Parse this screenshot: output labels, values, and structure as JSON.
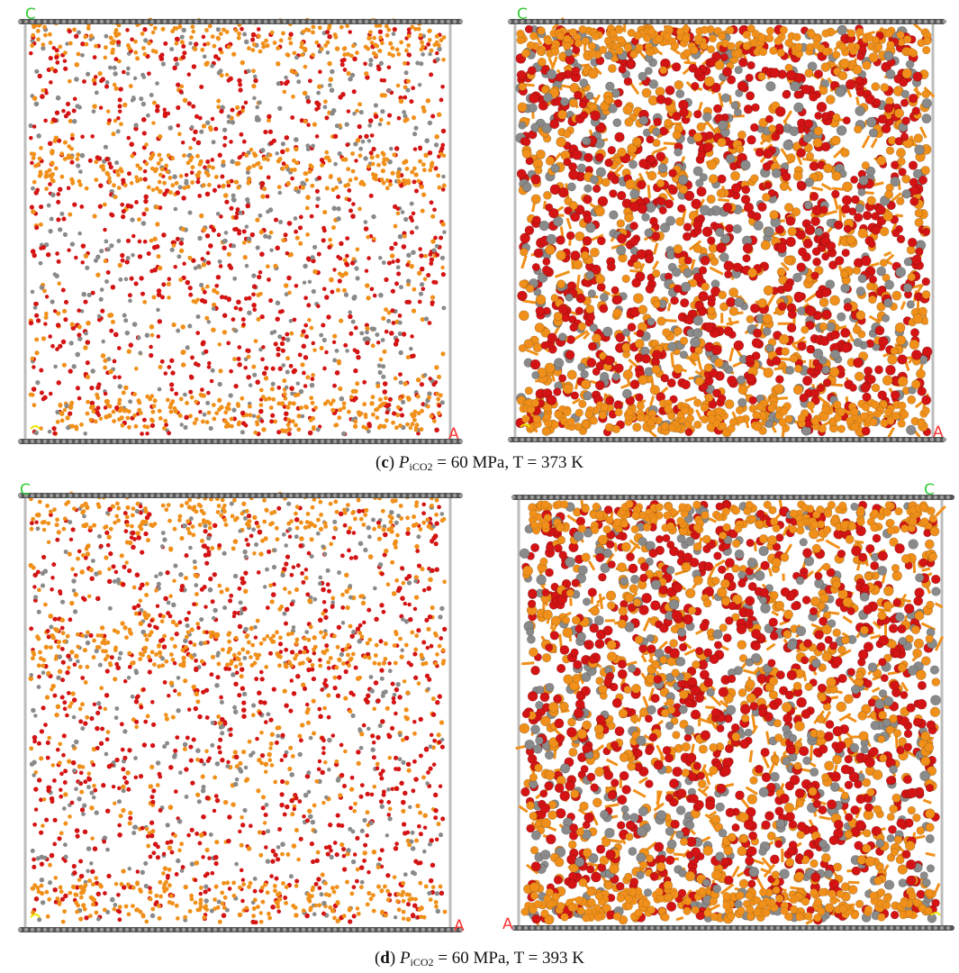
{
  "panels": [
    {
      "id": "c-left",
      "density": "sparse",
      "seed": 11,
      "origin_mark": "lower-left"
    },
    {
      "id": "c-right",
      "density": "dense",
      "seed": 23,
      "origin_mark": "lower-left"
    },
    {
      "id": "d-left",
      "density": "sparse",
      "seed": 37,
      "origin_mark": "lower-left"
    },
    {
      "id": "d-right",
      "density": "dense",
      "seed": 53,
      "origin_mark": "mirrored"
    }
  ],
  "axis_letters": {
    "c": "C",
    "a": "A"
  },
  "colors": {
    "oxygen": "#d41414",
    "carbon": "#8a8a8a",
    "oil": "#f0901a",
    "cell_edge": "#bdbdbd",
    "graphene": "#555555",
    "label_c": "#33cc33",
    "label_a": "#ff3333",
    "label_origin": "#e8e800"
  },
  "captions": {
    "c": {
      "letter": "c",
      "p_symbol": "P",
      "p_subscript": "iCO2",
      "rest": " = 60 MPa, T = 373 K"
    },
    "d": {
      "letter": "d",
      "p_symbol": "P",
      "p_subscript": "iCO2",
      "rest": " = 60 MPa, T = 393 K"
    }
  }
}
